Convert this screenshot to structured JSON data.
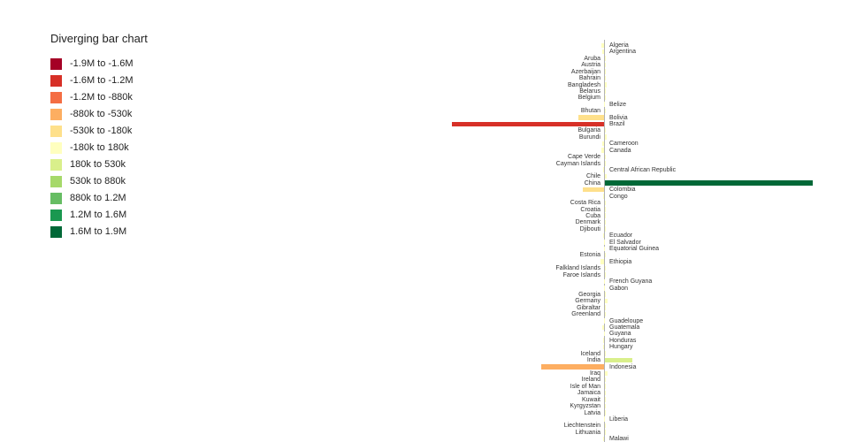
{
  "title": "Diverging bar chart",
  "legend": {
    "items": [
      {
        "label": "-1.9M to -1.6M",
        "color": "#a50026"
      },
      {
        "label": "-1.6M to -1.2M",
        "color": "#d73027"
      },
      {
        "label": "-1.2M to -880k",
        "color": "#f46d43"
      },
      {
        "label": "-880k to -530k",
        "color": "#fdae61"
      },
      {
        "label": "-530k to -180k",
        "color": "#fee08b"
      },
      {
        "label": "-180k to 180k",
        "color": "#ffffbf"
      },
      {
        "label": "180k to 530k",
        "color": "#d9ef8b"
      },
      {
        "label": "530k to 880k",
        "color": "#a6d96a"
      },
      {
        "label": "880k to 1.2M",
        "color": "#66bd63"
      },
      {
        "label": "1.2M to 1.6M",
        "color": "#1a9850"
      },
      {
        "label": "1.6M to 1.9M",
        "color": "#006837"
      }
    ]
  },
  "chart_data": {
    "type": "bar",
    "orientation": "horizontal-diverging",
    "title": "Diverging bar chart",
    "value_unit": "thousands",
    "xlim_k": [
      -1900,
      1900
    ],
    "grid": false,
    "legend_position": "left",
    "label_rule": "category label placed on opposite side of bar direction",
    "bins": {
      "thresholds_k": [
        -1900,
        -1600,
        -1200,
        -880,
        -530,
        -180,
        180,
        530,
        880,
        1200,
        1600,
        1900
      ],
      "colors": [
        "#a50026",
        "#d73027",
        "#f46d43",
        "#fdae61",
        "#fee08b",
        "#ffffbf",
        "#d9ef8b",
        "#a6d96a",
        "#66bd63",
        "#1a9850",
        "#006837"
      ]
    },
    "categories": [
      "Algeria",
      "Argentina",
      "Aruba",
      "Austria",
      "Azerbaijan",
      "Bahrain",
      "Bangladesh",
      "Belarus",
      "Belgium",
      "Belize",
      "Bhutan",
      "Bolivia",
      "Brazil",
      "Bulgaria",
      "Burundi",
      "Cameroon",
      "Canada",
      "Cape Verde",
      "Cayman Islands",
      "Central African Republic",
      "Chile",
      "China",
      "Colombia",
      "Congo",
      "Costa Rica",
      "Croatia",
      "Cuba",
      "Denmark",
      "Djibouti",
      "Ecuador",
      "El Salvador",
      "Equatorial Guinea",
      "Estonia",
      "Ethiopia",
      "Falkland Islands",
      "Faroe Islands",
      "French Guyana",
      "Gabon",
      "Georgia",
      "Germany",
      "Gibraltar",
      "Greenland",
      "Guadeloupe",
      "Guatemala",
      "Guyana",
      "Honduras",
      "Hungary",
      "Iceland",
      "India",
      "Indonesia",
      "Iraq",
      "Ireland",
      "Isle of Man",
      "Jamaica",
      "Kuwait",
      "Kyrgyzstan",
      "Latvia",
      "Liberia",
      "Liechtenstein",
      "Lithuania",
      "Malawi"
    ],
    "values_k": [
      -20,
      -12,
      2,
      8,
      10,
      6,
      15,
      5,
      7,
      -3,
      4,
      -230,
      -1350,
      10,
      12,
      -14,
      -25,
      2,
      1,
      -5,
      12,
      1840,
      -190,
      -8,
      4,
      3,
      6,
      5,
      2,
      -10,
      -4,
      -3,
      2,
      -30,
      1,
      1,
      -2,
      -4,
      5,
      20,
      1,
      1,
      -2,
      -12,
      -3,
      -8,
      -6,
      2,
      240,
      -560,
      25,
      5,
      1,
      3,
      8,
      6,
      3,
      -4,
      1,
      4,
      -10
    ]
  }
}
